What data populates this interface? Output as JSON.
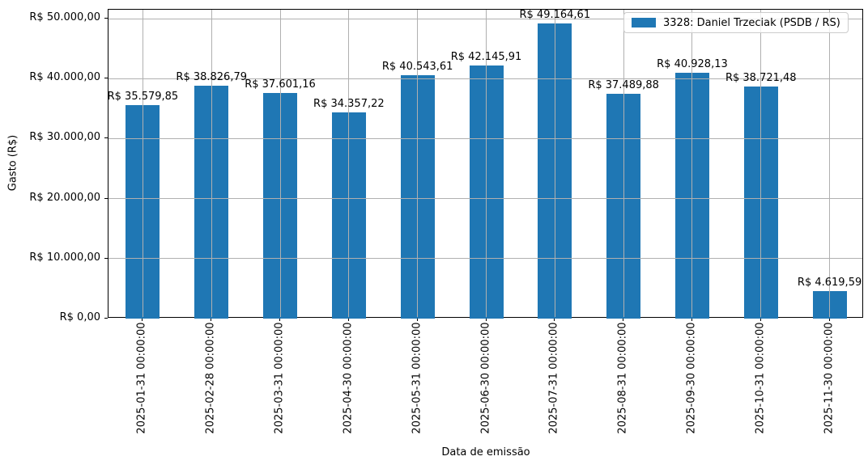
{
  "chart_data": {
    "type": "bar",
    "title": "",
    "xlabel": "Data de emissão",
    "ylabel": "Gasto (R$)",
    "categories": [
      "2025-01-31 00:00:00",
      "2025-02-28 00:00:00",
      "2025-03-31 00:00:00",
      "2025-04-30 00:00:00",
      "2025-05-31 00:00:00",
      "2025-06-30 00:00:00",
      "2025-07-31 00:00:00",
      "2025-08-31 00:00:00",
      "2025-09-30 00:00:00",
      "2025-10-31 00:00:00",
      "2025-11-30 00:00:00"
    ],
    "series": [
      {
        "name": "3328: Daniel Trzeciak (PSDB / RS)",
        "color": "#1f77b4",
        "values": [
          35579.85,
          38826.79,
          37601.16,
          34357.22,
          40543.61,
          42145.91,
          49164.61,
          37489.88,
          40928.13,
          38721.48,
          4619.59
        ]
      }
    ],
    "value_labels": [
      "R$ 35.579,85",
      "R$ 38.826,79",
      "R$ 37.601,16",
      "R$ 34.357,22",
      "R$ 40.543,61",
      "R$ 42.145,91",
      "R$ 49.164,61",
      "R$ 37.489,88",
      "R$ 40.928,13",
      "R$ 38.721,48",
      "R$ 4.619,59"
    ],
    "y_ticks": [
      {
        "value": 0,
        "label": "R$ 0,00"
      },
      {
        "value": 10000,
        "label": "R$ 10.000,00"
      },
      {
        "value": 20000,
        "label": "R$ 20.000,00"
      },
      {
        "value": 30000,
        "label": "R$ 30.000,00"
      },
      {
        "value": 40000,
        "label": "R$ 40.000,00"
      },
      {
        "value": 50000,
        "label": "R$ 50.000,00"
      }
    ],
    "ylim": [
      0,
      51500
    ],
    "grid": true,
    "grid_color": "#b0b0b0",
    "axis_color": "#000000",
    "legend_position": "upper right"
  }
}
